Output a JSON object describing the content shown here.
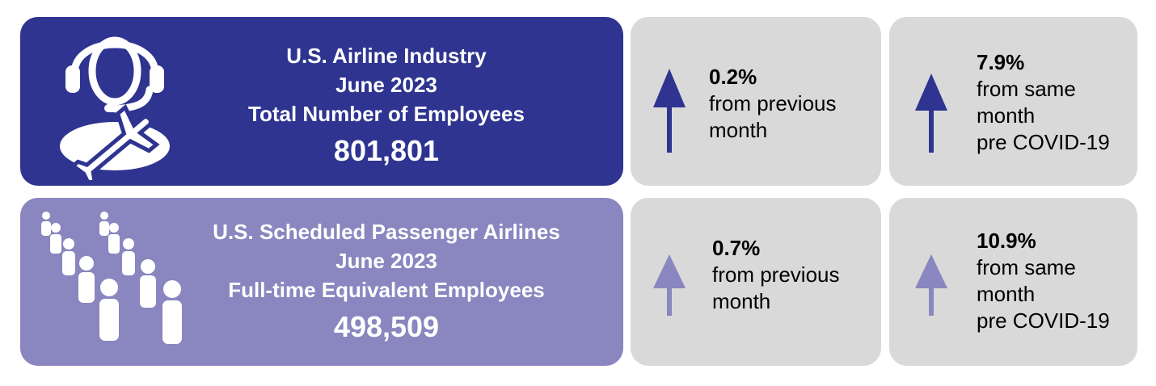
{
  "colors": {
    "dark_blue": "#2e3490",
    "light_purple": "#8a86bf",
    "stat_bg": "#d9d9da",
    "white": "#ffffff"
  },
  "row1": {
    "icon": "headset-agent-airplane-icon",
    "title_line1": "U.S. Airline Industry",
    "title_line2": "June 2023",
    "title_line3": "Total Number of Employees",
    "total": "801,801",
    "stat_month": {
      "value": "0.2%",
      "label": "from previous\nmonth",
      "trend": "up"
    },
    "stat_covid": {
      "value": "7.9%",
      "label": "from same\nmonth\npre COVID-19",
      "trend": "up"
    }
  },
  "row2": {
    "icon": "people-queue-icon",
    "title_line1": "U.S. Scheduled Passenger Airlines",
    "title_line2": "June 2023",
    "title_line3": "Full-time Equivalent Employees",
    "total": "498,509",
    "stat_month": {
      "value": "0.7%",
      "label": "from previous\nmonth",
      "trend": "up"
    },
    "stat_covid": {
      "value": "10.9%",
      "label": "from same\nmonth\npre COVID-19",
      "trend": "up"
    }
  }
}
